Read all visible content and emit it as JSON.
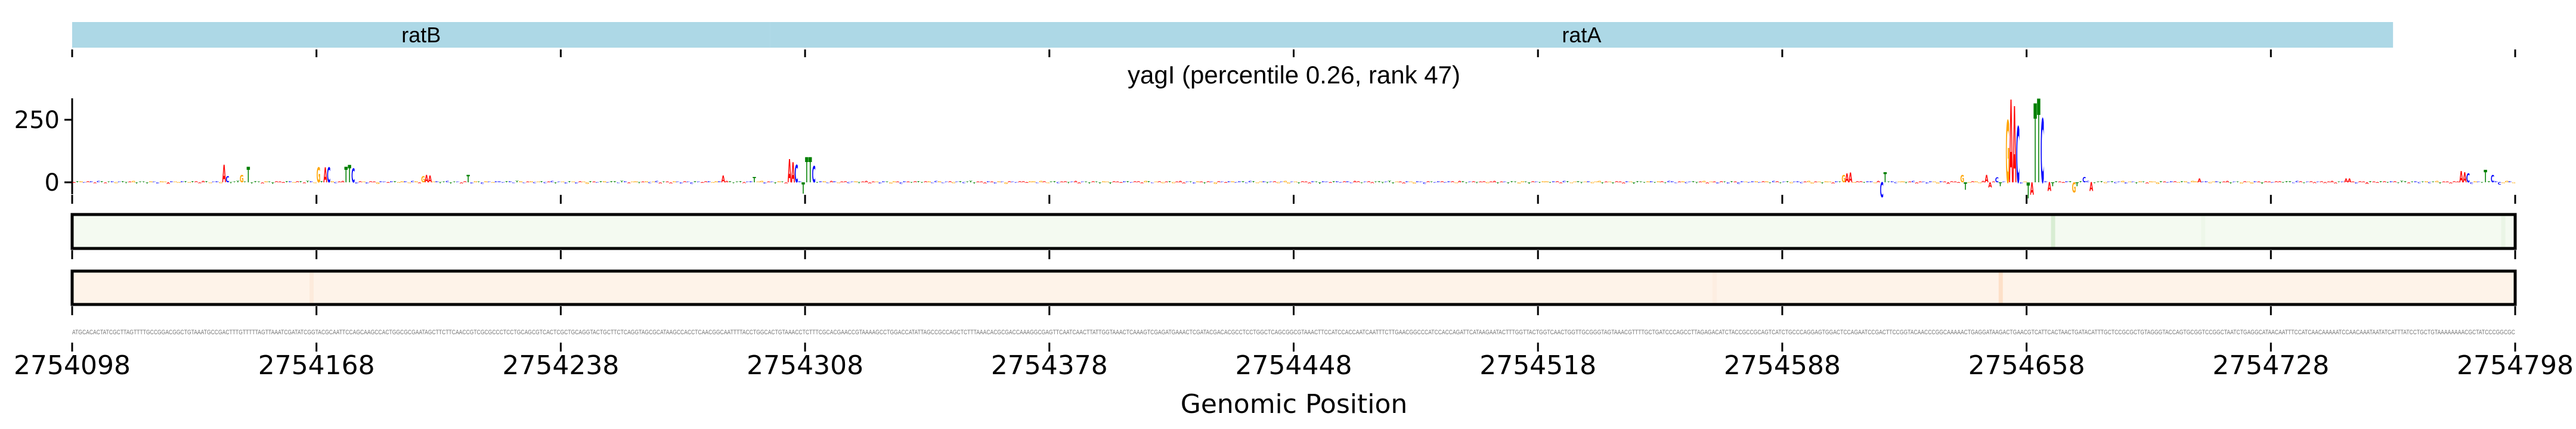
{
  "chart_data": {
    "type": "sequence-logo",
    "title": "yagI (percentile 0.26, rank 47)",
    "xlabel": "Genomic Position",
    "ylabel": "",
    "xlim": [
      2754098,
      2754798
    ],
    "ylim": [
      -80,
      340
    ],
    "x_ticks": [
      "2754098",
      "2754168",
      "2754238",
      "2754308",
      "2754378",
      "2754448",
      "2754518",
      "2754588",
      "2754658",
      "2754728",
      "2754798"
    ],
    "x_tick_values": [
      2754098,
      2754168,
      2754238,
      2754308,
      2754378,
      2754448,
      2754518,
      2754588,
      2754658,
      2754728,
      2754798
    ],
    "y_ticks": [
      {
        "label": "250",
        "value": 250
      },
      {
        "label": "0",
        "value": 0
      }
    ],
    "genes": [
      {
        "name": "ratB",
        "start": 2754098,
        "end": 2754298,
        "color": "#add8e6"
      },
      {
        "name": "ratA",
        "start": 2754298,
        "end": 2754763,
        "color": "#add8e6"
      }
    ],
    "base_colors": {
      "A": "#ff0000",
      "C": "#0000ff",
      "G": "#ffa500",
      "T": "#008000"
    },
    "background_letter_height": 4,
    "logo_peaks": [
      {
        "offset": 43,
        "base": "A",
        "value": 69
      },
      {
        "offset": 44,
        "base": "C",
        "value": 25
      },
      {
        "offset": 48,
        "base": "G",
        "value": 30
      },
      {
        "offset": 50,
        "base": "T",
        "value": 62
      },
      {
        "offset": 70,
        "base": "G",
        "value": 60
      },
      {
        "offset": 72,
        "base": "A",
        "value": 60
      },
      {
        "offset": 73,
        "base": "C",
        "value": 60
      },
      {
        "offset": 78,
        "base": "T",
        "value": 62
      },
      {
        "offset": 79,
        "base": "T",
        "value": 70
      },
      {
        "offset": 80,
        "base": "C",
        "value": 55
      },
      {
        "offset": 100,
        "base": "G",
        "value": 25
      },
      {
        "offset": 101,
        "base": "A",
        "value": 30
      },
      {
        "offset": 102,
        "base": "A",
        "value": 28
      },
      {
        "offset": 113,
        "base": "T",
        "value": 30
      },
      {
        "offset": 186,
        "base": "A",
        "value": 28
      },
      {
        "offset": 195,
        "base": "T",
        "value": 22
      },
      {
        "offset": 205,
        "base": "A",
        "value": 93
      },
      {
        "offset": 206,
        "base": "A",
        "value": 80
      },
      {
        "offset": 207,
        "base": "C",
        "value": 70
      },
      {
        "offset": 209,
        "base": "T",
        "value": -45
      },
      {
        "offset": 210,
        "base": "T",
        "value": 100
      },
      {
        "offset": 211,
        "base": "T",
        "value": 100
      },
      {
        "offset": 212,
        "base": "C",
        "value": 65
      },
      {
        "offset": 507,
        "base": "G",
        "value": 30
      },
      {
        "offset": 508,
        "base": "A",
        "value": 35
      },
      {
        "offset": 509,
        "base": "A",
        "value": 38
      },
      {
        "offset": 518,
        "base": "C",
        "value": -60
      },
      {
        "offset": 519,
        "base": "T",
        "value": 40
      },
      {
        "offset": 541,
        "base": "G",
        "value": 30
      },
      {
        "offset": 542,
        "base": "T",
        "value": -30
      },
      {
        "offset": 548,
        "base": "A",
        "value": 30
      },
      {
        "offset": 549,
        "base": "A",
        "value": -20
      },
      {
        "offset": 551,
        "base": "C",
        "value": 20
      },
      {
        "offset": 552,
        "base": "T",
        "value": -15
      },
      {
        "offset": 554,
        "base": "G",
        "value": 248
      },
      {
        "offset": 555,
        "base": "A",
        "value": 331
      },
      {
        "offset": 556,
        "base": "A",
        "value": 305
      },
      {
        "offset": 557,
        "base": "C",
        "value": 224
      },
      {
        "offset": 560,
        "base": "T",
        "value": -64
      },
      {
        "offset": 561,
        "base": "A",
        "value": -50
      },
      {
        "offset": 562,
        "base": "T",
        "value": 316
      },
      {
        "offset": 563,
        "base": "T",
        "value": 335
      },
      {
        "offset": 564,
        "base": "C",
        "value": 255
      },
      {
        "offset": 566,
        "base": "A",
        "value": -35
      },
      {
        "offset": 567,
        "base": "T",
        "value": -15
      },
      {
        "offset": 573,
        "base": "G",
        "value": -40
      },
      {
        "offset": 574,
        "base": "T",
        "value": -15
      },
      {
        "offset": 576,
        "base": "C",
        "value": 22
      },
      {
        "offset": 578,
        "base": "A",
        "value": -35
      },
      {
        "offset": 609,
        "base": "A",
        "value": 15
      },
      {
        "offset": 651,
        "base": "A",
        "value": 15
      },
      {
        "offset": 652,
        "base": "A",
        "value": 15
      },
      {
        "offset": 684,
        "base": "A",
        "value": 45
      },
      {
        "offset": 685,
        "base": "A",
        "value": 40
      },
      {
        "offset": 686,
        "base": "C",
        "value": 35
      },
      {
        "offset": 691,
        "base": "T",
        "value": 50
      },
      {
        "offset": 693,
        "base": "C",
        "value": 30
      },
      {
        "offset": 695,
        "base": "C",
        "value": -10
      }
    ],
    "track1": {
      "base_color": "#f4faf1",
      "highlights": [
        {
          "offset": 567,
          "color": "#d8edd3"
        },
        {
          "offset": 610,
          "color": "#eef7ea"
        },
        {
          "offset": 696,
          "color": "#eaf5e6"
        }
      ]
    },
    "track2": {
      "base_color": "#fef3e9",
      "highlights": [
        {
          "offset": 552,
          "color": "#fde0c8"
        },
        {
          "offset": 68,
          "color": "#fdebdc"
        },
        {
          "offset": 470,
          "color": "#fdeee2"
        }
      ]
    },
    "sequence": "ATGCACACTATCGCTTAGTTTTGCCGGACGGCTGTAAATGCCGACTTTGTTTTTAGTTAAATCGATATCGGTACGCAATTCCAGCAAGCCACTGGCGCGAATAGCTTCTTCAACCGTCGCGCCCTCCTGCAGCGTCACTCGCTGCAGGTACTGCTTCTCAGGTAGCGCATAAGCCACCTCAACGGCAATTTTACCTGGCACTGTAAACCTCTTTCGCACGAACCGTAAAAGCCTGGACCATATTAGCCGCCAGCTCTTTAAACACGCGACCAAAGGCGAGTTCAATCAACTTATTGGTAAACTCAAAGTCGAGATGAAACTCGATACGACACGCCTCCTGGCTCAGCGGCGTAAACTTCCATCCACCAATCAATTTCTTGAACGGCCCATCCACCAGATTCATAAGAATACTTTGGTTACTGGTCAACTGGTTGCGGGTAGTAAACGTTTTGCTGATCCCAGCCTTAGAGACATCTACCGCCGCAGTCATCTGCCCAGGAGTGGACTCCAGAATCCGACTTCCGGTACAACCCGGCAAAAACTGAGGATAAGACTGAACGTCATTCACTAACTGATACATTTGCTCCGCGCTGTAGGGTACCAGTGCGGTCCGGCTAATCTGAGGCATAACAATTTCCATCAACAAAAATCCAACAAATAATATCATTTATCCTGCTGTAAAAAAAACGCTATCCCGGCGC"
  }
}
